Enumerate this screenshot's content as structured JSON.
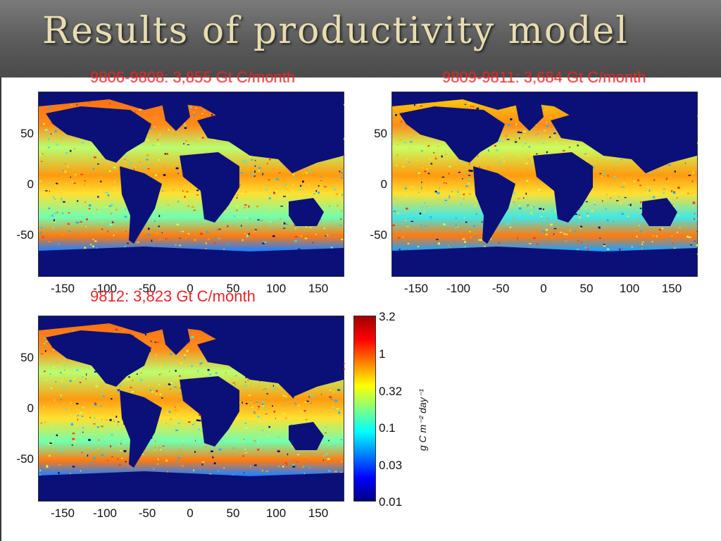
{
  "slide": {
    "title": "Results of productivity model"
  },
  "colors": {
    "land_mask": "#0a1077",
    "caption": "#e8262a",
    "title": "#e8ddb0"
  },
  "maps": [
    {
      "caption": "9806-9808: 3,855 Gt C/month",
      "y_ticks": [
        "50",
        "0",
        "-50"
      ],
      "x_ticks": [
        "-150",
        "-100",
        "-50",
        "0",
        "50",
        "100",
        "150"
      ]
    },
    {
      "caption": "9809-9811: 3,684 Gt C/month",
      "y_ticks": [
        "50",
        "0",
        "-50"
      ],
      "x_ticks": [
        "-150",
        "-100",
        "-50",
        "0",
        "50",
        "100",
        "150"
      ]
    },
    {
      "caption": "9812: 3,823 Gt C/month",
      "y_ticks": [
        "50",
        "0",
        "-50"
      ],
      "x_ticks": [
        "-150",
        "-100",
        "-50",
        "0",
        "50",
        "100",
        "150"
      ]
    }
  ],
  "colorbar": {
    "ticks": [
      "3.2",
      "1",
      "0.32",
      "0.1",
      "0.03",
      "0.01"
    ],
    "label": "g C m⁻² day⁻¹",
    "colors": [
      "#a00000",
      "#ff0000",
      "#ff8000",
      "#ffff00",
      "#80ff80",
      "#00ffff",
      "#0080ff",
      "#0000ff",
      "#000080"
    ]
  }
}
